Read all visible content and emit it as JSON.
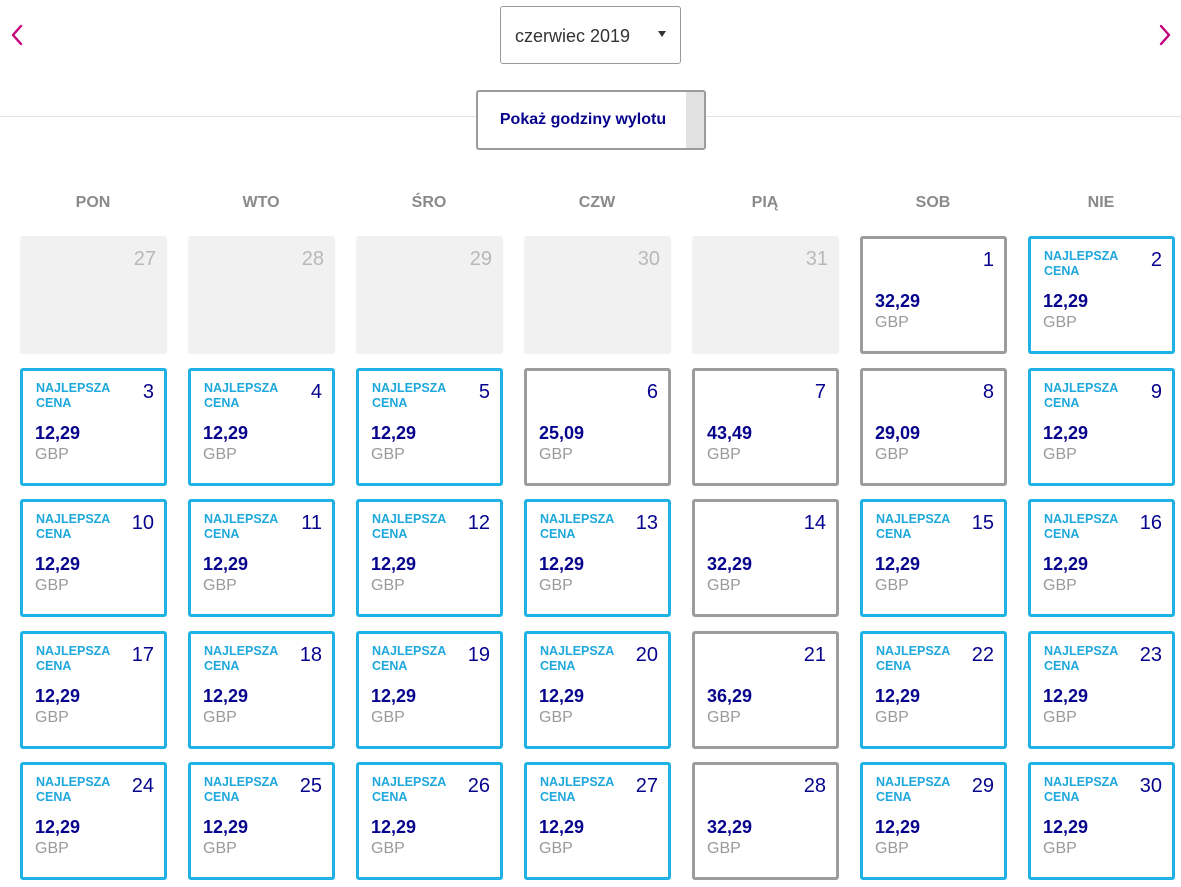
{
  "header": {
    "prev_icon": "chevron-left-icon",
    "next_icon": "chevron-right-icon",
    "month_select_value": "czerwiec 2019",
    "toggle_label": "Pokaż godziny wylotu",
    "accent_color": "#c6007e",
    "text_color": "#06038d",
    "best_border_color": "#1fb1e3"
  },
  "weekdays": [
    "PON",
    "WTO",
    "ŚRO",
    "CZW",
    "PIĄ",
    "SOB",
    "NIE"
  ],
  "calendar": {
    "weeks": [
      [
        {
          "day": "27",
          "type": "outside"
        },
        {
          "day": "28",
          "type": "outside"
        },
        {
          "day": "29",
          "type": "outside"
        },
        {
          "day": "30",
          "type": "outside"
        },
        {
          "day": "31",
          "type": "outside"
        },
        {
          "day": "1",
          "type": "regular",
          "price": "32,29",
          "currency": "GBP"
        },
        {
          "day": "2",
          "type": "best",
          "badge": "NAJLEPSZA\nCENA",
          "price": "12,29",
          "currency": "GBP"
        }
      ],
      [
        {
          "day": "3",
          "type": "best",
          "badge": "NAJLEPSZA\nCENA",
          "price": "12,29",
          "currency": "GBP"
        },
        {
          "day": "4",
          "type": "best",
          "badge": "NAJLEPSZA\nCENA",
          "price": "12,29",
          "currency": "GBP"
        },
        {
          "day": "5",
          "type": "best",
          "badge": "NAJLEPSZA\nCENA",
          "price": "12,29",
          "currency": "GBP"
        },
        {
          "day": "6",
          "type": "regular",
          "price": "25,09",
          "currency": "GBP"
        },
        {
          "day": "7",
          "type": "regular",
          "price": "43,49",
          "currency": "GBP"
        },
        {
          "day": "8",
          "type": "regular",
          "price": "29,09",
          "currency": "GBP"
        },
        {
          "day": "9",
          "type": "best",
          "badge": "NAJLEPSZA\nCENA",
          "price": "12,29",
          "currency": "GBP"
        }
      ],
      [
        {
          "day": "10",
          "type": "best",
          "badge": "NAJLEPSZA\nCENA",
          "price": "12,29",
          "currency": "GBP"
        },
        {
          "day": "11",
          "type": "best",
          "badge": "NAJLEPSZA\nCENA",
          "price": "12,29",
          "currency": "GBP"
        },
        {
          "day": "12",
          "type": "best",
          "badge": "NAJLEPSZA\nCENA",
          "price": "12,29",
          "currency": "GBP"
        },
        {
          "day": "13",
          "type": "best",
          "badge": "NAJLEPSZA\nCENA",
          "price": "12,29",
          "currency": "GBP"
        },
        {
          "day": "14",
          "type": "regular",
          "price": "32,29",
          "currency": "GBP"
        },
        {
          "day": "15",
          "type": "best",
          "badge": "NAJLEPSZA\nCENA",
          "price": "12,29",
          "currency": "GBP"
        },
        {
          "day": "16",
          "type": "best",
          "badge": "NAJLEPSZA\nCENA",
          "price": "12,29",
          "currency": "GBP"
        }
      ],
      [
        {
          "day": "17",
          "type": "best",
          "badge": "NAJLEPSZA\nCENA",
          "price": "12,29",
          "currency": "GBP"
        },
        {
          "day": "18",
          "type": "best",
          "badge": "NAJLEPSZA\nCENA",
          "price": "12,29",
          "currency": "GBP"
        },
        {
          "day": "19",
          "type": "best",
          "badge": "NAJLEPSZA\nCENA",
          "price": "12,29",
          "currency": "GBP"
        },
        {
          "day": "20",
          "type": "best",
          "badge": "NAJLEPSZA\nCENA",
          "price": "12,29",
          "currency": "GBP"
        },
        {
          "day": "21",
          "type": "regular",
          "price": "36,29",
          "currency": "GBP"
        },
        {
          "day": "22",
          "type": "best",
          "badge": "NAJLEPSZA\nCENA",
          "price": "12,29",
          "currency": "GBP"
        },
        {
          "day": "23",
          "type": "best",
          "badge": "NAJLEPSZA\nCENA",
          "price": "12,29",
          "currency": "GBP"
        }
      ],
      [
        {
          "day": "24",
          "type": "best",
          "badge": "NAJLEPSZA\nCENA",
          "price": "12,29",
          "currency": "GBP"
        },
        {
          "day": "25",
          "type": "best",
          "badge": "NAJLEPSZA\nCENA",
          "price": "12,29",
          "currency": "GBP"
        },
        {
          "day": "26",
          "type": "best",
          "badge": "NAJLEPSZA\nCENA",
          "price": "12,29",
          "currency": "GBP"
        },
        {
          "day": "27",
          "type": "best",
          "badge": "NAJLEPSZA\nCENA",
          "price": "12,29",
          "currency": "GBP"
        },
        {
          "day": "28",
          "type": "regular",
          "price": "32,29",
          "currency": "GBP"
        },
        {
          "day": "29",
          "type": "best",
          "badge": "NAJLEPSZA\nCENA",
          "price": "12,29",
          "currency": "GBP"
        },
        {
          "day": "30",
          "type": "best",
          "badge": "NAJLEPSZA\nCENA",
          "price": "12,29",
          "currency": "GBP"
        }
      ]
    ]
  }
}
